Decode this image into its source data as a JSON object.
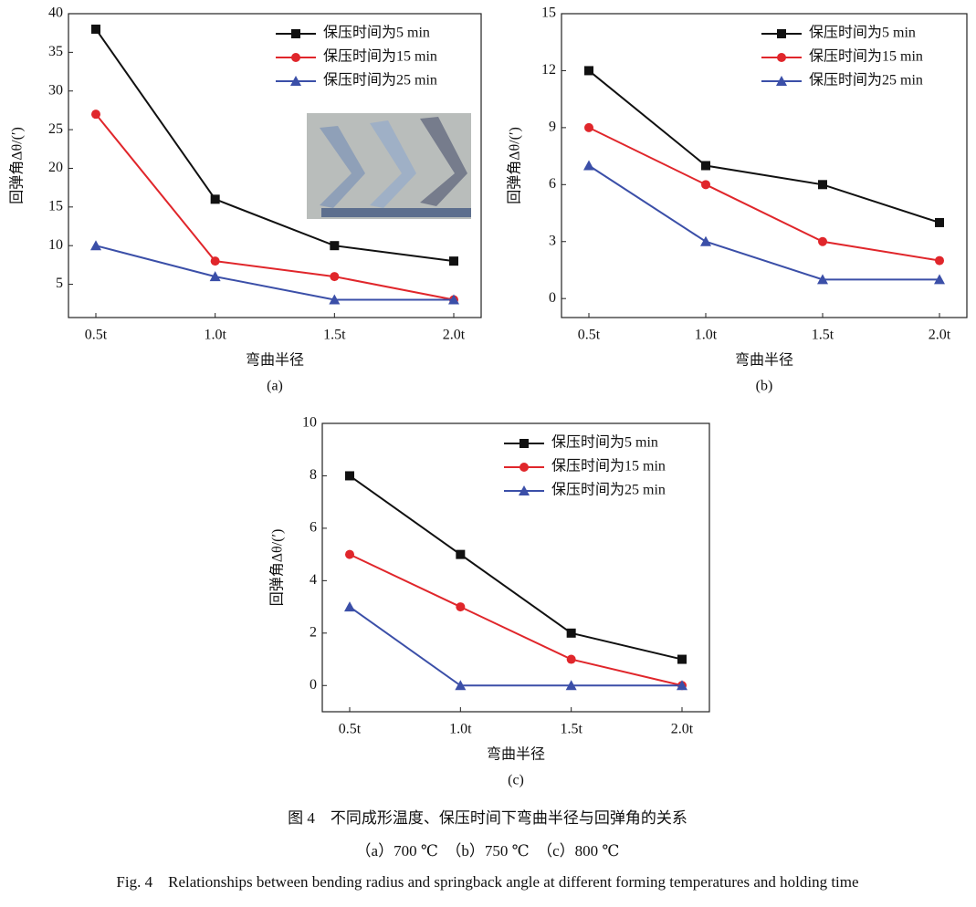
{
  "chart_data": [
    {
      "type": "line",
      "label": "(a)",
      "x_label": "弯曲半径",
      "y_label": "回弹角Δθ/(′)",
      "categories": [
        "0.5t",
        "1.0t",
        "1.5t",
        "2.0t"
      ],
      "ylim": [
        0.7,
        40
      ],
      "yticks": [
        5,
        10,
        15,
        20,
        25,
        30,
        35,
        40
      ],
      "grid": false,
      "legend": "upper right",
      "series": [
        {
          "name": "保压时间为5 min",
          "color": "#111111",
          "marker": "square",
          "values": [
            38,
            16,
            10,
            8
          ]
        },
        {
          "name": "保压时间为15 min",
          "color": "#e0262b",
          "marker": "circle",
          "values": [
            27,
            8,
            6,
            3
          ]
        },
        {
          "name": "保压时间为25 min",
          "color": "#3b4fa8",
          "marker": "triangle",
          "values": [
            10,
            6,
            3,
            3
          ]
        }
      ]
    },
    {
      "type": "line",
      "label": "(b)",
      "x_label": "弯曲半径",
      "y_label": "回弹角Δθ/(′)",
      "categories": [
        "0.5t",
        "1.0t",
        "1.5t",
        "2.0t"
      ],
      "ylim": [
        -1,
        15
      ],
      "yticks": [
        0,
        3,
        6,
        9,
        12,
        15
      ],
      "grid": false,
      "legend": "upper right",
      "series": [
        {
          "name": "保压时间为5 min",
          "color": "#111111",
          "marker": "square",
          "values": [
            12,
            7,
            6,
            4
          ]
        },
        {
          "name": "保压时间为15 min",
          "color": "#e0262b",
          "marker": "circle",
          "values": [
            9,
            6,
            3,
            2
          ]
        },
        {
          "name": "保压时间为25 min",
          "color": "#3b4fa8",
          "marker": "triangle",
          "values": [
            7,
            3,
            1,
            1
          ]
        }
      ]
    },
    {
      "type": "line",
      "label": "(c)",
      "x_label": "弯曲半径",
      "y_label": "回弹角Δθ/(′)",
      "categories": [
        "0.5t",
        "1.0t",
        "1.5t",
        "2.0t"
      ],
      "ylim": [
        -1,
        10
      ],
      "yticks": [
        0,
        2,
        4,
        6,
        8,
        10
      ],
      "grid": false,
      "legend": "upper right",
      "series": [
        {
          "name": "保压时间为5 min",
          "color": "#111111",
          "marker": "square",
          "values": [
            8,
            5,
            2,
            1
          ]
        },
        {
          "name": "保压时间为15 min",
          "color": "#e0262b",
          "marker": "circle",
          "values": [
            5,
            3,
            1,
            0
          ]
        },
        {
          "name": "保压时间为25 min",
          "color": "#3b4fa8",
          "marker": "triangle",
          "values": [
            3,
            0,
            0,
            0
          ]
        }
      ]
    }
  ],
  "figure": {
    "title_zh": "图 4　不同成形温度、保压时间下弯曲半径与回弹角的关系",
    "subtitle": "（a）700 ℃　（b）750 ℃　（c）800 ℃",
    "title_en": "Fig. 4　Relationships between bending radius and springback angle at different forming temperatures and holding time"
  }
}
